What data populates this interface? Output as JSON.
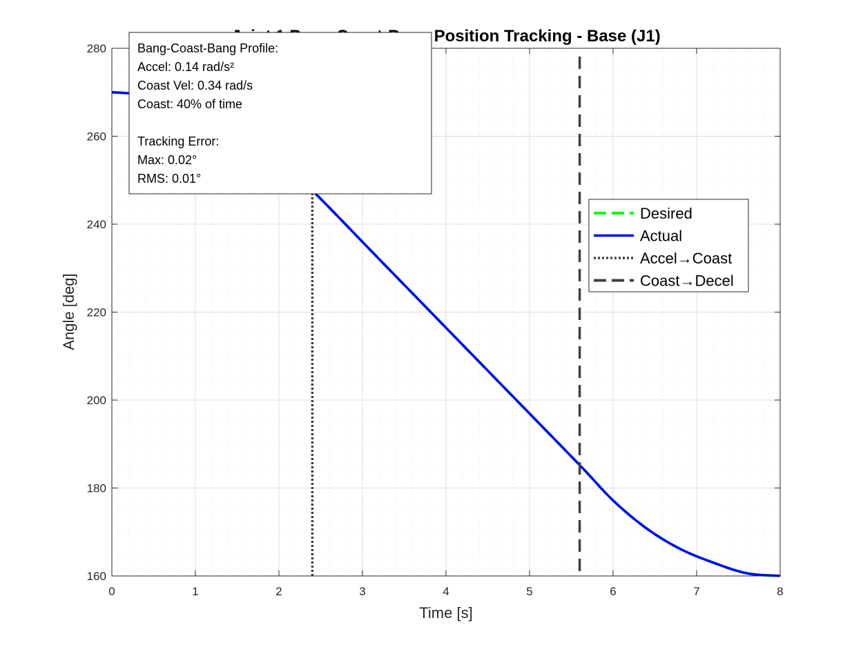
{
  "chart_data": {
    "type": "line",
    "title": "Joint 1 Bang-Coast-Bang Position Tracking - Base (J1)",
    "xlabel": "Time [s]",
    "ylabel": "Angle [deg]",
    "xlim": [
      0,
      8
    ],
    "ylim": [
      160,
      280
    ],
    "xticks": [
      0,
      1,
      2,
      3,
      4,
      5,
      6,
      7,
      8
    ],
    "yticks": [
      160,
      180,
      200,
      220,
      240,
      260,
      280
    ],
    "grid": true,
    "minor_grid": true,
    "legend_position": "right",
    "series": [
      {
        "name": "Desired",
        "color": "#00ff00",
        "style": "dashed",
        "x": [
          0,
          0.4,
          0.8,
          1.2,
          1.6,
          2.0,
          2.4,
          3.2,
          4.0,
          4.8,
          5.6,
          6.0,
          6.4,
          6.8,
          7.2,
          7.6,
          8.0
        ],
        "y": [
          270.0,
          269.38,
          267.52,
          264.42,
          260.07,
          254.49,
          247.66,
          232.05,
          216.44,
          200.83,
          185.23,
          177.17,
          170.82,
          166.18,
          163.03,
          160.62,
          160.0
        ]
      },
      {
        "name": "Actual",
        "color": "#0000ff",
        "style": "solid",
        "x": [
          0,
          0.4,
          0.8,
          1.2,
          1.6,
          2.0,
          2.4,
          3.2,
          4.0,
          4.8,
          5.6,
          6.0,
          6.4,
          6.8,
          7.2,
          7.6,
          8.0
        ],
        "y": [
          270.0,
          269.38,
          267.52,
          264.42,
          260.07,
          254.49,
          247.66,
          232.05,
          216.44,
          200.83,
          185.23,
          177.17,
          170.82,
          166.18,
          163.03,
          160.62,
          160.0
        ]
      }
    ],
    "markers": [
      {
        "name": "Accel→Coast",
        "x": 2.4,
        "style": "dotted",
        "color": "#404040"
      },
      {
        "name": "Coast→Decel",
        "x": 5.6,
        "style": "dashed",
        "color": "#404040"
      }
    ],
    "annotation": {
      "lines": [
        "Bang-Coast-Bang Profile:",
        "Accel: 0.14 rad/s²",
        "Coast Vel: 0.34 rad/s",
        "Coast: 40% of time",
        "",
        "Tracking Error:",
        "Max: 0.02°",
        "RMS: 0.01°"
      ]
    },
    "legend": [
      "Desired",
      "Actual",
      "Accel→Coast",
      "Coast→Decel"
    ]
  }
}
